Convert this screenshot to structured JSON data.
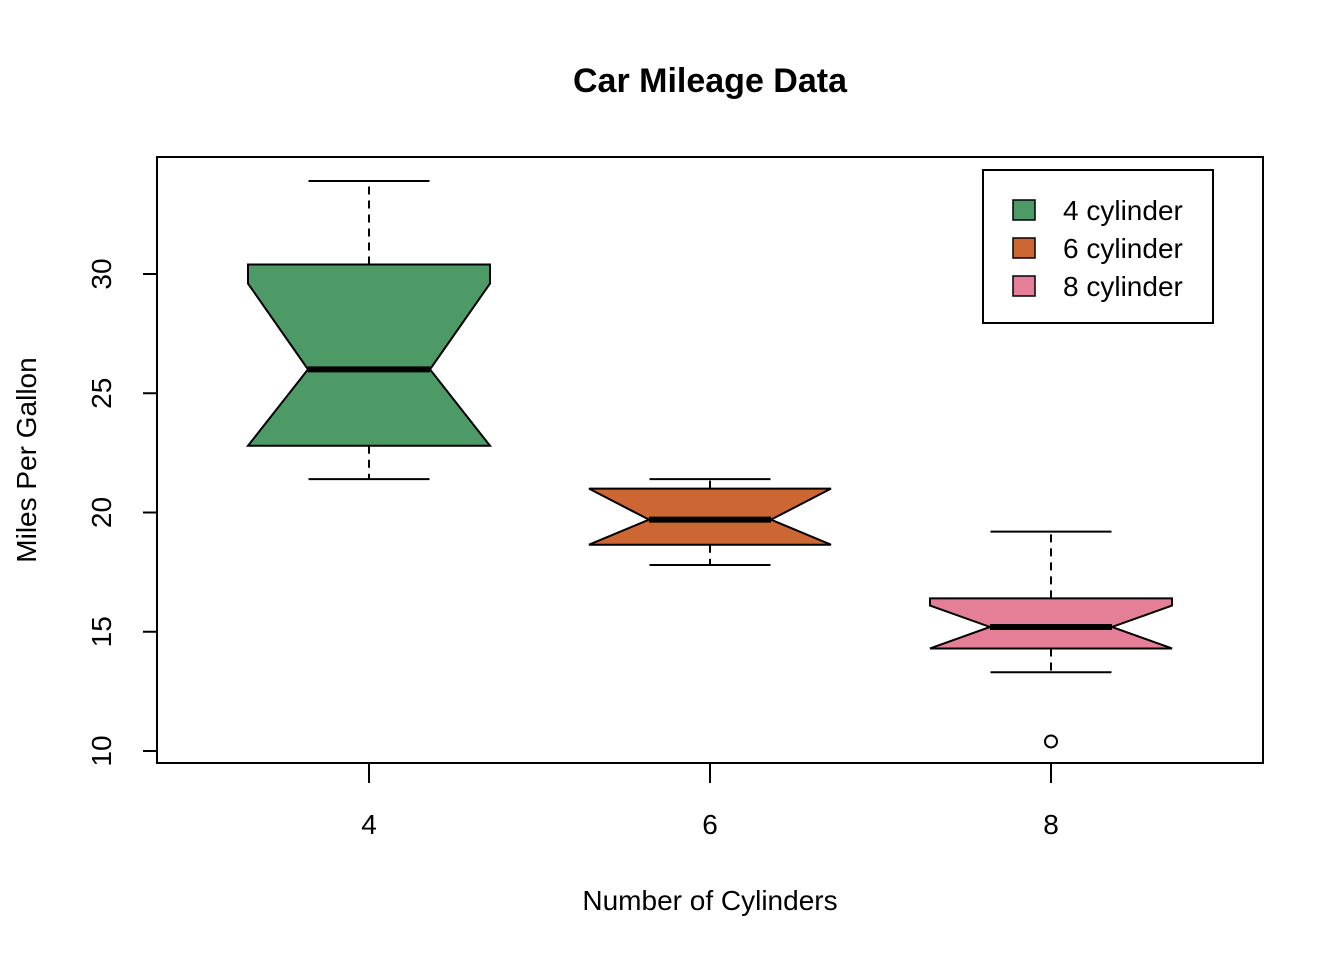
{
  "chart_data": {
    "type": "boxplot",
    "title": "Car Mileage Data",
    "xlabel": "Number of Cylinders",
    "ylabel": "Miles Per Gallon",
    "categories": [
      "4",
      "6",
      "8"
    ],
    "ylim": [
      9.5,
      35
    ],
    "yticks": [
      10,
      15,
      20,
      25,
      30
    ],
    "notched": true,
    "grid": false,
    "legend_position": "top-right",
    "series": [
      {
        "name": "4 cylinder",
        "color": "#4E9A67",
        "min": 21.4,
        "q1": 22.8,
        "median": 26.0,
        "q3": 30.4,
        "max": 33.9,
        "notch_low": 22.4,
        "notch_high": 29.6,
        "outliers": []
      },
      {
        "name": "6 cylinder",
        "color": "#CC6633",
        "min": 17.8,
        "q1": 18.65,
        "median": 19.7,
        "q3": 21.0,
        "max": 21.4,
        "notch_low": 18.4,
        "notch_high": 21.0,
        "outliers": []
      },
      {
        "name": "8 cylinder",
        "color": "#E57F98",
        "min": 13.3,
        "q1": 14.3,
        "median": 15.2,
        "q3": 16.4,
        "max": 19.2,
        "notch_low": 14.3,
        "notch_high": 16.1,
        "outliers": [
          10.4
        ]
      }
    ]
  }
}
